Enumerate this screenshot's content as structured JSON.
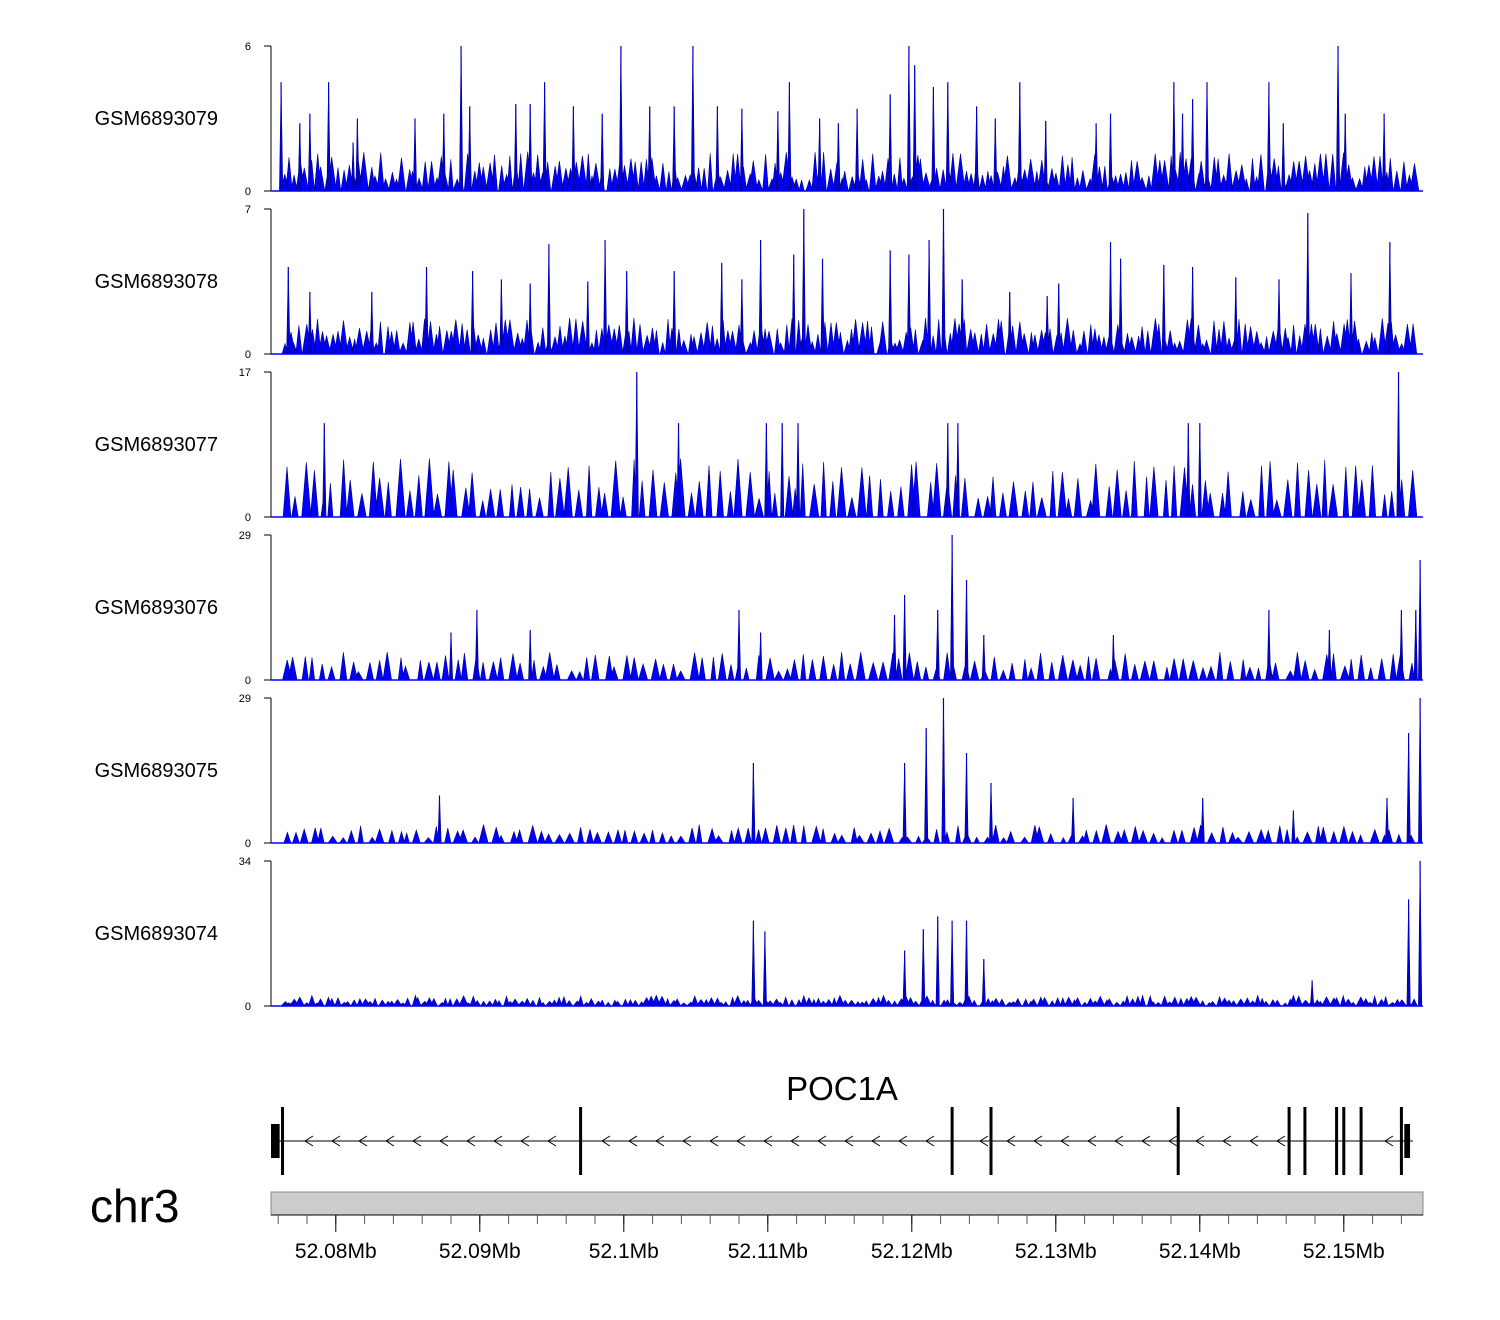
{
  "chart_data": {
    "type": "area",
    "title": "",
    "chromosome": "chr3",
    "x_unit": "Mb",
    "xlim": [
      52.0755,
      52.1555
    ],
    "x_ticks": [
      52.08,
      52.09,
      52.1,
      52.11,
      52.12,
      52.13,
      52.14,
      52.15
    ],
    "x_tick_labels": [
      "52.08Mb",
      "52.09Mb",
      "52.1Mb",
      "52.11Mb",
      "52.12Mb",
      "52.13Mb",
      "52.14Mb",
      "52.15Mb"
    ],
    "series": [
      {
        "name": "GSM6893079",
        "ymax": 6,
        "ylim_labels": [
          "0",
          "6"
        ],
        "color": "#0000ff",
        "baseline_level": 1.3,
        "peaks": [
          [
            52.0762,
            4.5
          ],
          [
            52.0775,
            2.8
          ],
          [
            52.0782,
            3.2
          ],
          [
            52.0795,
            4.5
          ],
          [
            52.0812,
            2.0
          ],
          [
            52.0815,
            3.0
          ],
          [
            52.0855,
            3.0
          ],
          [
            52.0875,
            3.2
          ],
          [
            52.0887,
            6.0
          ],
          [
            52.0893,
            3.5
          ],
          [
            52.0925,
            3.6
          ],
          [
            52.0935,
            3.6
          ],
          [
            52.0945,
            4.5
          ],
          [
            52.0965,
            3.5
          ],
          [
            52.0985,
            3.2
          ],
          [
            52.0998,
            6.0
          ],
          [
            52.1018,
            3.5
          ],
          [
            52.1035,
            3.5
          ],
          [
            52.1048,
            6.0
          ],
          [
            52.1065,
            3.5
          ],
          [
            52.1082,
            3.4
          ],
          [
            52.1107,
            3.3
          ],
          [
            52.1115,
            4.5
          ],
          [
            52.1136,
            3.0
          ],
          [
            52.1149,
            2.8
          ],
          [
            52.1162,
            3.4
          ],
          [
            52.1185,
            4.0
          ],
          [
            52.1198,
            6.0
          ],
          [
            52.1202,
            5.2
          ],
          [
            52.1215,
            4.3
          ],
          [
            52.1225,
            4.5
          ],
          [
            52.1245,
            3.5
          ],
          [
            52.1258,
            3.0
          ],
          [
            52.1275,
            4.5
          ],
          [
            52.1293,
            2.9
          ],
          [
            52.1328,
            2.8
          ],
          [
            52.1338,
            3.2
          ],
          [
            52.1382,
            4.5
          ],
          [
            52.1388,
            3.2
          ],
          [
            52.1395,
            3.8
          ],
          [
            52.1405,
            4.5
          ],
          [
            52.1448,
            4.5
          ],
          [
            52.1458,
            2.8
          ],
          [
            52.1496,
            6.0
          ],
          [
            52.1501,
            3.2
          ],
          [
            52.1528,
            3.2
          ]
        ]
      },
      {
        "name": "GSM6893078",
        "ymax": 7,
        "ylim_labels": [
          "0",
          "7"
        ],
        "color": "#0000ff",
        "baseline_level": 1.4,
        "peaks": [
          [
            52.0767,
            4.2
          ],
          [
            52.0782,
            3.0
          ],
          [
            52.0825,
            3.0
          ],
          [
            52.0863,
            4.2
          ],
          [
            52.0895,
            4.0
          ],
          [
            52.0915,
            3.6
          ],
          [
            52.0935,
            3.4
          ],
          [
            52.0948,
            5.3
          ],
          [
            52.0975,
            3.5
          ],
          [
            52.0987,
            5.5
          ],
          [
            52.1002,
            4.0
          ],
          [
            52.1035,
            4.0
          ],
          [
            52.1068,
            4.4
          ],
          [
            52.1082,
            3.6
          ],
          [
            52.1095,
            5.5
          ],
          [
            52.1118,
            4.8
          ],
          [
            52.1125,
            7.0
          ],
          [
            52.1138,
            4.6
          ],
          [
            52.1185,
            5.0
          ],
          [
            52.1198,
            4.8
          ],
          [
            52.1212,
            5.5
          ],
          [
            52.1222,
            7.0
          ],
          [
            52.1235,
            3.6
          ],
          [
            52.1268,
            3.0
          ],
          [
            52.1294,
            2.8
          ],
          [
            52.1302,
            3.4
          ],
          [
            52.1338,
            5.4
          ],
          [
            52.1345,
            4.6
          ],
          [
            52.1375,
            4.3
          ],
          [
            52.1395,
            4.2
          ],
          [
            52.1425,
            3.7
          ],
          [
            52.1455,
            3.6
          ],
          [
            52.1475,
            6.8
          ],
          [
            52.1505,
            3.9
          ],
          [
            52.1532,
            5.4
          ]
        ]
      },
      {
        "name": "GSM6893077",
        "ymax": 17,
        "ylim_labels": [
          "0",
          "17"
        ],
        "color": "#0000ff",
        "baseline_level": 5.5,
        "peaks": [
          [
            52.0792,
            11.0
          ],
          [
            52.1009,
            17.0
          ],
          [
            52.1038,
            11.0
          ],
          [
            52.1099,
            11.0
          ],
          [
            52.111,
            11.0
          ],
          [
            52.1121,
            11.0
          ],
          [
            52.1225,
            11.0
          ],
          [
            52.1232,
            11.0
          ],
          [
            52.1392,
            11.0
          ],
          [
            52.14,
            11.0
          ],
          [
            52.1538,
            17.0
          ]
        ]
      },
      {
        "name": "GSM6893076",
        "ymax": 29,
        "ylim_labels": [
          "0",
          "29"
        ],
        "color": "#0000ff",
        "baseline_level": 4.5,
        "peaks": [
          [
            52.088,
            9.5
          ],
          [
            52.0898,
            14.0
          ],
          [
            52.0935,
            10.0
          ],
          [
            52.108,
            14.0
          ],
          [
            52.1095,
            9.5
          ],
          [
            52.1188,
            13.0
          ],
          [
            52.1195,
            17.0
          ],
          [
            52.1218,
            14.0
          ],
          [
            52.1228,
            29.0
          ],
          [
            52.1238,
            20.0
          ],
          [
            52.125,
            9.0
          ],
          [
            52.134,
            9.0
          ],
          [
            52.1448,
            14.0
          ],
          [
            52.149,
            10.0
          ],
          [
            52.154,
            14.0
          ],
          [
            52.155,
            14.0
          ],
          [
            52.1553,
            24.0
          ]
        ]
      },
      {
        "name": "GSM6893075",
        "ymax": 29,
        "ylim_labels": [
          "0",
          "29"
        ],
        "color": "#0000ff",
        "baseline_level": 3.0,
        "peaks": [
          [
            52.0872,
            9.5
          ],
          [
            52.109,
            16.0
          ],
          [
            52.1195,
            16.0
          ],
          [
            52.121,
            23.0
          ],
          [
            52.1222,
            29.0
          ],
          [
            52.1238,
            18.0
          ],
          [
            52.1255,
            12.0
          ],
          [
            52.1312,
            9.0
          ],
          [
            52.1402,
            9.0
          ],
          [
            52.1465,
            6.5
          ],
          [
            52.153,
            9.0
          ],
          [
            52.1545,
            22.0
          ],
          [
            52.1553,
            29.0
          ]
        ]
      },
      {
        "name": "GSM6893074",
        "ymax": 34,
        "ylim_labels": [
          "0",
          "34"
        ],
        "color": "#0000ff",
        "baseline_level": 2.0,
        "peaks": [
          [
            52.109,
            20.0
          ],
          [
            52.1098,
            17.5
          ],
          [
            52.1195,
            13.0
          ],
          [
            52.1208,
            18.0
          ],
          [
            52.1218,
            21.0
          ],
          [
            52.1228,
            20.0
          ],
          [
            52.1238,
            20.0
          ],
          [
            52.125,
            11.0
          ],
          [
            52.1478,
            6.0
          ],
          [
            52.1545,
            25.0
          ],
          [
            52.1553,
            34.0
          ]
        ]
      }
    ],
    "gene_track": {
      "gene_name": "POC1A",
      "strand": "-",
      "start": 52.0755,
      "end": 52.1548,
      "utr": [
        [
          52.0755,
          52.0761
        ],
        [
          52.1542,
          52.1546
        ]
      ],
      "exons": [
        52.0763,
        52.097,
        52.1228,
        52.1255,
        52.1385,
        52.1462,
        52.1473,
        52.1495,
        52.15,
        52.1512,
        52.154
      ]
    }
  }
}
